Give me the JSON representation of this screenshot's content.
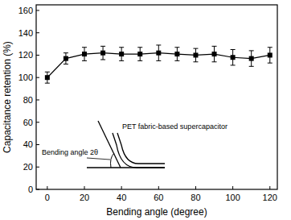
{
  "chart_data": {
    "type": "line",
    "x_label": "Bending angle (degree)",
    "y_label": "Capacitance retention (%)",
    "annotations": [
      "PET fabric-based supercapacitor",
      "Bending angle 2θ"
    ],
    "x": [
      0,
      10,
      20,
      30,
      40,
      50,
      60,
      70,
      80,
      90,
      100,
      110,
      120
    ],
    "series": [
      {
        "name": "Capacitance retention",
        "color": "#000000",
        "marker": "square",
        "line_style": "solid",
        "values": [
          100,
          117,
          121,
          122,
          121,
          121,
          122,
          121,
          120,
          121,
          118,
          117,
          120
        ],
        "errors": [
          5,
          5,
          6,
          6,
          6,
          6,
          7,
          6,
          6,
          7,
          7,
          7,
          7
        ]
      }
    ],
    "xlim": [
      -6,
      124
    ],
    "xticks": [
      0,
      20,
      40,
      60,
      80,
      100,
      120
    ],
    "ylim": [
      0,
      165
    ],
    "yticks": [
      0,
      20,
      40,
      60,
      80,
      100,
      120,
      140,
      160
    ],
    "grid": false
  }
}
